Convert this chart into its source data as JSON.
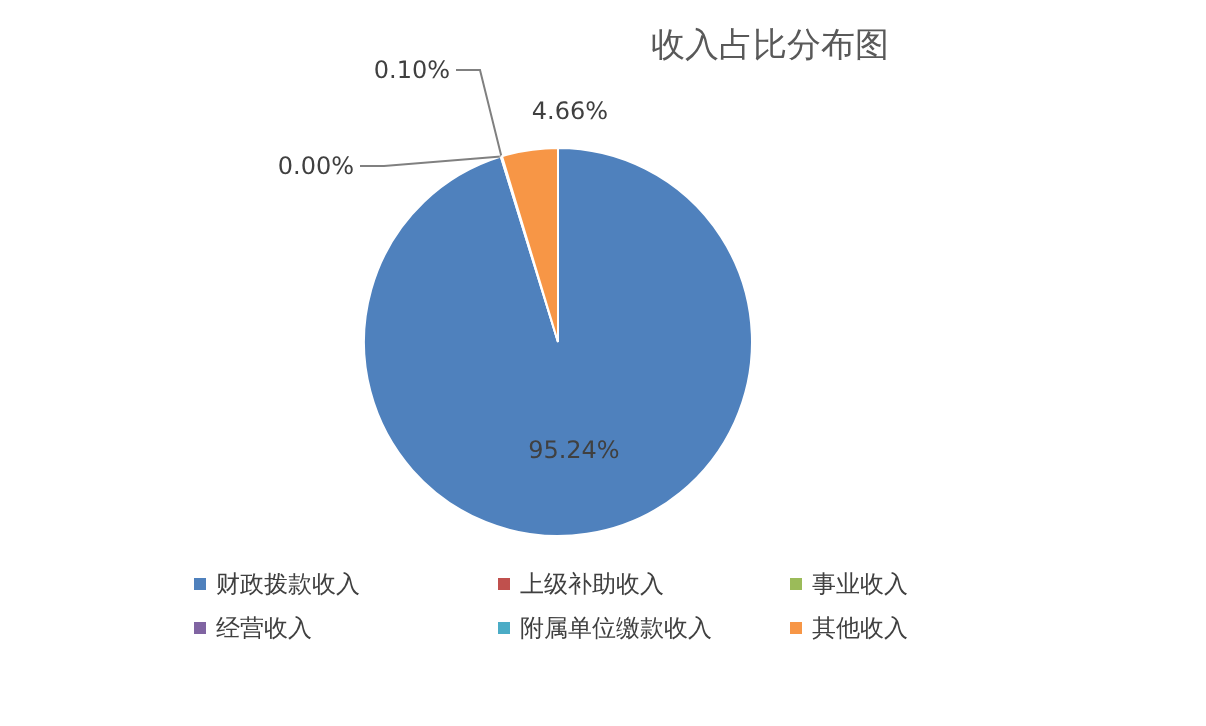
{
  "chart_data": {
    "type": "pie",
    "title": "收入占比分布图",
    "categories": [
      "财政拨款收入",
      "上级补助收入",
      "事业收入",
      "经营收入",
      "附属单位缴款收入",
      "其他收入"
    ],
    "values": [
      95.24,
      0,
      0.1,
      0,
      0,
      4.66
    ],
    "value_labels": [
      "95.24%",
      "0.00%",
      "0.10%",
      null,
      null,
      "4.66%"
    ],
    "colors": [
      "#4f81bd",
      "#c0504d",
      "#9bbb59",
      "#8064a2",
      "#4bacc6",
      "#f79646"
    ],
    "legend": "bottom"
  }
}
